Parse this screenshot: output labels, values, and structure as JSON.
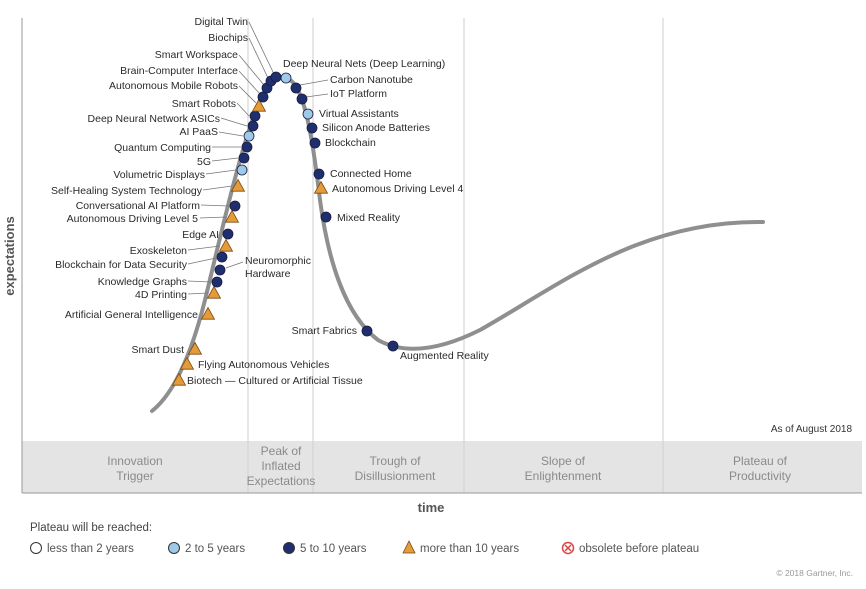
{
  "chart_data": {
    "type": "scatter",
    "axes": {
      "xlabel": "time",
      "ylabel": "expectations"
    },
    "as_of": "As of August 2018",
    "phases": [
      "Innovation Trigger",
      "Peak of Inflated Expectations",
      "Trough of Disillusionment",
      "Slope of Enlightenment",
      "Plateau of Productivity"
    ],
    "legend_title": "Plateau will be reached:",
    "legend": [
      {
        "key": "lt2",
        "label": "less than 2 years",
        "shape": "circle",
        "fill": "#ffffff"
      },
      {
        "key": "2to5",
        "label": "2 to 5 years",
        "shape": "circle",
        "fill": "#9fc9e8"
      },
      {
        "key": "5to10",
        "label": "5 to 10 years",
        "shape": "circle",
        "fill": "#1f2f6e"
      },
      {
        "key": "gt10",
        "label": "more than 10 years",
        "shape": "triangle",
        "fill": "#e69b3a"
      },
      {
        "key": "obsolete",
        "label": "obsolete before plateau",
        "shape": "obsolete",
        "fill": "#d44"
      }
    ],
    "copyright": "© 2018 Gartner, Inc.",
    "technologies": [
      {
        "name": "Biotech — Cultured or Artificial Tissue",
        "phase": "Innovation Trigger",
        "plateau": "gt10"
      },
      {
        "name": "Flying Autonomous Vehicles",
        "phase": "Innovation Trigger",
        "plateau": "gt10"
      },
      {
        "name": "Smart Dust",
        "phase": "Innovation Trigger",
        "plateau": "gt10"
      },
      {
        "name": "Artificial General Intelligence",
        "phase": "Innovation Trigger",
        "plateau": "gt10"
      },
      {
        "name": "4D Printing",
        "phase": "Innovation Trigger",
        "plateau": "gt10"
      },
      {
        "name": "Knowledge Graphs",
        "phase": "Innovation Trigger",
        "plateau": "5to10"
      },
      {
        "name": "Neuromorphic Hardware",
        "phase": "Innovation Trigger",
        "plateau": "5to10"
      },
      {
        "name": "Blockchain for Data Security",
        "phase": "Innovation Trigger",
        "plateau": "5to10"
      },
      {
        "name": "Exoskeleton",
        "phase": "Innovation Trigger",
        "plateau": "gt10"
      },
      {
        "name": "Edge AI",
        "phase": "Innovation Trigger",
        "plateau": "5to10"
      },
      {
        "name": "Autonomous Driving Level 5",
        "phase": "Innovation Trigger",
        "plateau": "gt10"
      },
      {
        "name": "Conversational AI Platform",
        "phase": "Innovation Trigger",
        "plateau": "5to10"
      },
      {
        "name": "Self-Healing System Technology",
        "phase": "Innovation Trigger",
        "plateau": "gt10"
      },
      {
        "name": "Volumetric Displays",
        "phase": "Innovation Trigger",
        "plateau": "2to5"
      },
      {
        "name": "5G",
        "phase": "Innovation Trigger",
        "plateau": "5to10"
      },
      {
        "name": "Quantum Computing",
        "phase": "Innovation Trigger",
        "plateau": "5to10"
      },
      {
        "name": "AI PaaS",
        "phase": "Innovation Trigger",
        "plateau": "2to5"
      },
      {
        "name": "Deep Neural Network ASICs",
        "phase": "Innovation Trigger",
        "plateau": "5to10"
      },
      {
        "name": "Smart Robots",
        "phase": "Innovation Trigger",
        "plateau": "5to10"
      },
      {
        "name": "Autonomous Mobile Robots",
        "phase": "Peak of Inflated Expectations",
        "plateau": "gt10"
      },
      {
        "name": "Brain-Computer Interface",
        "phase": "Peak of Inflated Expectations",
        "plateau": "5to10"
      },
      {
        "name": "Smart Workspace",
        "phase": "Peak of Inflated Expectations",
        "plateau": "5to10"
      },
      {
        "name": "Biochips",
        "phase": "Peak of Inflated Expectations",
        "plateau": "5to10"
      },
      {
        "name": "Digital Twin",
        "phase": "Peak of Inflated Expectations",
        "plateau": "5to10"
      },
      {
        "name": "Deep Neural Nets (Deep Learning)",
        "phase": "Peak of Inflated Expectations",
        "plateau": "2to5"
      },
      {
        "name": "Carbon Nanotube",
        "phase": "Peak of Inflated Expectations",
        "plateau": "5to10"
      },
      {
        "name": "IoT Platform",
        "phase": "Peak of Inflated Expectations",
        "plateau": "5to10"
      },
      {
        "name": "Virtual Assistants",
        "phase": "Peak of Inflated Expectations",
        "plateau": "2to5"
      },
      {
        "name": "Silicon Anode Batteries",
        "phase": "Peak of Inflated Expectations",
        "plateau": "5to10"
      },
      {
        "name": "Blockchain",
        "phase": "Peak of Inflated Expectations",
        "plateau": "5to10"
      },
      {
        "name": "Connected Home",
        "phase": "Trough of Disillusionment",
        "plateau": "5to10"
      },
      {
        "name": "Autonomous Driving Level 4",
        "phase": "Trough of Disillusionment",
        "plateau": "gt10"
      },
      {
        "name": "Mixed Reality",
        "phase": "Trough of Disillusionment",
        "plateau": "5to10"
      },
      {
        "name": "Smart Fabrics",
        "phase": "Trough of Disillusionment",
        "plateau": "5to10"
      },
      {
        "name": "Augmented Reality",
        "phase": "Trough of Disillusionment",
        "plateau": "5to10"
      }
    ]
  }
}
